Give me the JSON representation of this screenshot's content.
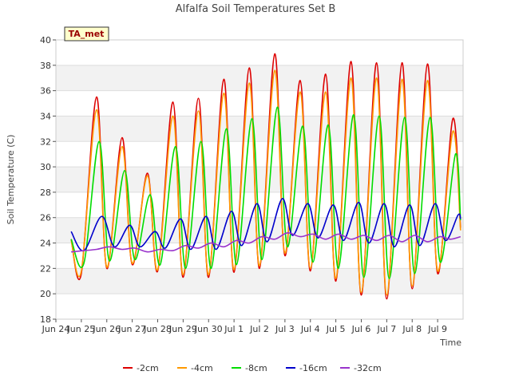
{
  "chart_data": {
    "type": "line",
    "title": "Alfalfa Soil Temperatures Set B",
    "xlabel": "Time",
    "ylabel": "Soil Temperature (C)",
    "ylim": [
      18,
      40
    ],
    "xlim": [
      0,
      16
    ],
    "grid": "horizontal alternating bands",
    "legend_position": "bottom",
    "annotation": "TA_met",
    "x_ticks": [
      {
        "x": 0,
        "label": "Jun 24"
      },
      {
        "x": 1,
        "label": "Jun 25"
      },
      {
        "x": 2,
        "label": "Jun 26"
      },
      {
        "x": 3,
        "label": "Jun 27"
      },
      {
        "x": 4,
        "label": "Jun 28"
      },
      {
        "x": 5,
        "label": "Jun 29"
      },
      {
        "x": 6,
        "label": "Jun 30"
      },
      {
        "x": 7,
        "label": "Jul 1"
      },
      {
        "x": 8,
        "label": "Jul 2"
      },
      {
        "x": 9,
        "label": "Jul 3"
      },
      {
        "x": 10,
        "label": "Jul 4"
      },
      {
        "x": 11,
        "label": "Jul 5"
      },
      {
        "x": 12,
        "label": "Jul 6"
      },
      {
        "x": 13,
        "label": "Jul 7"
      },
      {
        "x": 14,
        "label": "Jul 8"
      },
      {
        "x": 15,
        "label": "Jul 9"
      }
    ],
    "y_ticks": [
      18,
      20,
      22,
      24,
      26,
      28,
      30,
      32,
      34,
      36,
      38,
      40
    ],
    "series": [
      {
        "name": "-2cm",
        "color": "#dd0000",
        "points": [
          [
            0.6,
            24.3
          ],
          [
            1.0,
            21.6
          ],
          [
            1.6,
            35.5
          ],
          [
            2.0,
            22.0
          ],
          [
            2.6,
            32.3
          ],
          [
            3.0,
            22.3
          ],
          [
            3.6,
            29.5
          ],
          [
            4.0,
            21.8
          ],
          [
            4.6,
            35.1
          ],
          [
            5.0,
            21.3
          ],
          [
            5.6,
            35.4
          ],
          [
            6.0,
            21.3
          ],
          [
            6.6,
            36.9
          ],
          [
            7.0,
            21.7
          ],
          [
            7.6,
            37.8
          ],
          [
            8.0,
            22.0
          ],
          [
            8.6,
            38.9
          ],
          [
            9.0,
            23.0
          ],
          [
            9.6,
            36.8
          ],
          [
            10.0,
            21.8
          ],
          [
            10.6,
            37.3
          ],
          [
            11.0,
            21.0
          ],
          [
            11.6,
            38.3
          ],
          [
            12.0,
            19.9
          ],
          [
            12.6,
            38.2
          ],
          [
            13.0,
            19.6
          ],
          [
            13.6,
            38.2
          ],
          [
            14.0,
            20.4
          ],
          [
            14.6,
            38.1
          ],
          [
            15.0,
            21.6
          ],
          [
            15.6,
            33.8
          ],
          [
            15.9,
            25.2
          ]
        ]
      },
      {
        "name": "-4cm",
        "color": "#ff9900",
        "points": [
          [
            0.6,
            24.2
          ],
          [
            1.0,
            21.8
          ],
          [
            1.6,
            34.5
          ],
          [
            2.0,
            22.1
          ],
          [
            2.6,
            31.6
          ],
          [
            3.0,
            22.4
          ],
          [
            3.6,
            29.3
          ],
          [
            4.0,
            21.9
          ],
          [
            4.6,
            34.0
          ],
          [
            5.0,
            21.5
          ],
          [
            5.6,
            34.4
          ],
          [
            6.0,
            21.5
          ],
          [
            6.6,
            35.8
          ],
          [
            7.0,
            21.9
          ],
          [
            7.6,
            36.6
          ],
          [
            8.0,
            22.2
          ],
          [
            8.6,
            37.6
          ],
          [
            9.0,
            23.2
          ],
          [
            9.6,
            35.9
          ],
          [
            10.0,
            22.0
          ],
          [
            10.6,
            35.9
          ],
          [
            11.0,
            21.2
          ],
          [
            11.6,
            37.0
          ],
          [
            12.0,
            20.1
          ],
          [
            12.6,
            37.0
          ],
          [
            13.0,
            19.9
          ],
          [
            13.6,
            36.9
          ],
          [
            14.0,
            20.6
          ],
          [
            14.6,
            36.8
          ],
          [
            15.0,
            21.8
          ],
          [
            15.6,
            32.8
          ],
          [
            15.9,
            25.0
          ]
        ]
      },
      {
        "name": "-8cm",
        "color": "#00dd00",
        "points": [
          [
            0.6,
            24.3
          ],
          [
            1.1,
            22.4
          ],
          [
            1.7,
            32.0
          ],
          [
            2.1,
            22.6
          ],
          [
            2.7,
            29.7
          ],
          [
            3.1,
            22.7
          ],
          [
            3.7,
            27.8
          ],
          [
            4.1,
            22.3
          ],
          [
            4.7,
            31.6
          ],
          [
            5.1,
            22.0
          ],
          [
            5.7,
            32.0
          ],
          [
            6.1,
            22.0
          ],
          [
            6.7,
            33.0
          ],
          [
            7.1,
            22.3
          ],
          [
            7.7,
            33.8
          ],
          [
            8.1,
            22.7
          ],
          [
            8.7,
            34.7
          ],
          [
            9.1,
            23.7
          ],
          [
            9.7,
            33.2
          ],
          [
            10.1,
            22.5
          ],
          [
            10.7,
            33.3
          ],
          [
            11.1,
            22.0
          ],
          [
            11.7,
            34.1
          ],
          [
            12.1,
            21.3
          ],
          [
            12.7,
            34.0
          ],
          [
            13.1,
            21.2
          ],
          [
            13.7,
            33.9
          ],
          [
            14.1,
            21.6
          ],
          [
            14.7,
            33.9
          ],
          [
            15.1,
            22.5
          ],
          [
            15.7,
            31.0
          ],
          [
            15.9,
            25.8
          ]
        ]
      },
      {
        "name": "-16cm",
        "color": "#0000cc",
        "points": [
          [
            0.6,
            24.9
          ],
          [
            1.1,
            23.4
          ],
          [
            1.8,
            26.1
          ],
          [
            2.3,
            23.7
          ],
          [
            2.9,
            25.4
          ],
          [
            3.3,
            23.7
          ],
          [
            3.9,
            24.9
          ],
          [
            4.3,
            23.6
          ],
          [
            4.9,
            25.9
          ],
          [
            5.3,
            23.5
          ],
          [
            5.9,
            26.1
          ],
          [
            6.3,
            23.5
          ],
          [
            6.9,
            26.5
          ],
          [
            7.3,
            23.8
          ],
          [
            7.9,
            27.1
          ],
          [
            8.3,
            24.1
          ],
          [
            8.9,
            27.5
          ],
          [
            9.3,
            24.6
          ],
          [
            9.9,
            27.1
          ],
          [
            10.3,
            24.4
          ],
          [
            10.9,
            27.0
          ],
          [
            11.3,
            24.2
          ],
          [
            11.9,
            27.2
          ],
          [
            12.3,
            24.0
          ],
          [
            12.9,
            27.1
          ],
          [
            13.3,
            23.7
          ],
          [
            13.9,
            27.0
          ],
          [
            14.3,
            23.8
          ],
          [
            14.9,
            27.1
          ],
          [
            15.3,
            24.2
          ],
          [
            15.8,
            26.2
          ],
          [
            15.9,
            25.9
          ]
        ]
      },
      {
        "name": "-32cm",
        "color": "#9933cc",
        "points": [
          [
            0.6,
            23.3
          ],
          [
            1.1,
            23.4
          ],
          [
            1.6,
            23.5
          ],
          [
            2.1,
            23.7
          ],
          [
            2.6,
            23.5
          ],
          [
            3.1,
            23.6
          ],
          [
            3.6,
            23.3
          ],
          [
            4.1,
            23.5
          ],
          [
            4.6,
            23.4
          ],
          [
            5.1,
            23.8
          ],
          [
            5.6,
            23.6
          ],
          [
            6.1,
            24.0
          ],
          [
            6.6,
            23.7
          ],
          [
            7.1,
            24.2
          ],
          [
            7.6,
            24.0
          ],
          [
            8.1,
            24.5
          ],
          [
            8.6,
            24.3
          ],
          [
            9.1,
            24.8
          ],
          [
            9.6,
            24.5
          ],
          [
            10.1,
            24.7
          ],
          [
            10.6,
            24.3
          ],
          [
            11.1,
            24.7
          ],
          [
            11.6,
            24.3
          ],
          [
            12.1,
            24.6
          ],
          [
            12.6,
            24.2
          ],
          [
            13.1,
            24.6
          ],
          [
            13.6,
            24.1
          ],
          [
            14.1,
            24.6
          ],
          [
            14.6,
            24.1
          ],
          [
            15.1,
            24.5
          ],
          [
            15.5,
            24.3
          ],
          [
            15.9,
            24.5
          ]
        ]
      }
    ]
  }
}
